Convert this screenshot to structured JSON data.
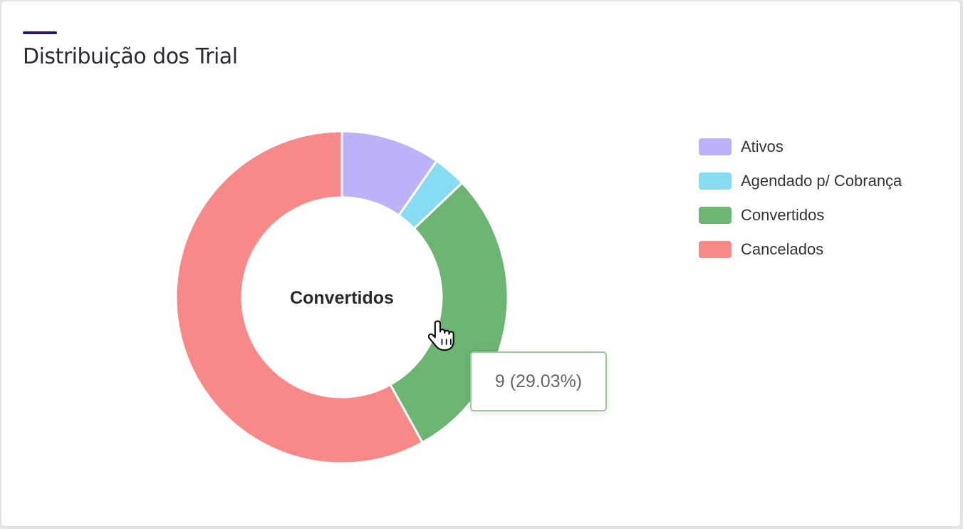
{
  "card": {
    "title": "Distribuição dos Trial",
    "accent_color": "#2a1b5e"
  },
  "chart_data": {
    "type": "pie",
    "variant": "doughnut",
    "categories": [
      "Ativos",
      "Agendado p/ Cobrança",
      "Convertidos",
      "Cancelados"
    ],
    "values": [
      3,
      1,
      9,
      18
    ],
    "colors": [
      "#bcb2f8",
      "#86dcf2",
      "#6cb573",
      "#f98889"
    ],
    "legend_position": "right",
    "center_label": "Convertidos",
    "hovered_category": "Convertidos"
  },
  "tooltip": {
    "text": "9 (29.03%)"
  },
  "cursor": {
    "icon": "hand-pointer-icon"
  }
}
